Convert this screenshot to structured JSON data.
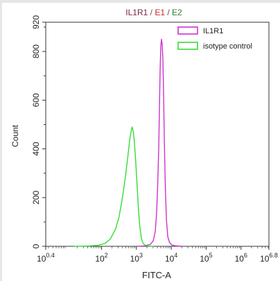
{
  "chart_data": {
    "type": "line",
    "title_parts": [
      {
        "text": "IL1R1",
        "color": "#7a1f3a"
      },
      {
        "text": " / ",
        "color": "#555555"
      },
      {
        "text": "E1",
        "color": "#cc2222"
      },
      {
        "text": " / ",
        "color": "#555555"
      },
      {
        "text": "E2",
        "color": "#2e7d32"
      }
    ],
    "xlabel": "FITC-A",
    "ylabel": "Count",
    "x_scale": "log10",
    "xlim": [
      0.4,
      6.8
    ],
    "ylim": [
      0,
      920
    ],
    "x_ticks": [
      {
        "base": "10",
        "exp": "0.4",
        "value": 0.4
      },
      {
        "base": "10",
        "exp": "2",
        "value": 2
      },
      {
        "base": "10",
        "exp": "3",
        "value": 3
      },
      {
        "base": "10",
        "exp": "4",
        "value": 4
      },
      {
        "base": "10",
        "exp": "5",
        "value": 5
      },
      {
        "base": "10",
        "exp": "6",
        "value": 6
      },
      {
        "base": "10",
        "exp": "6.8",
        "value": 6.8
      }
    ],
    "y_ticks": [
      0,
      200,
      400,
      600,
      800,
      920
    ],
    "legend_position": "top-right",
    "series": [
      {
        "name": "IL1R1",
        "color": "#cc33cc",
        "points": [
          [
            3.05,
            0
          ],
          [
            3.25,
            2
          ],
          [
            3.4,
            8
          ],
          [
            3.48,
            22
          ],
          [
            3.54,
            60
          ],
          [
            3.58,
            140
          ],
          [
            3.61,
            250
          ],
          [
            3.64,
            400
          ],
          [
            3.66,
            560
          ],
          [
            3.68,
            720
          ],
          [
            3.7,
            820
          ],
          [
            3.72,
            850
          ],
          [
            3.74,
            830
          ],
          [
            3.76,
            760
          ],
          [
            3.78,
            620
          ],
          [
            3.8,
            430
          ],
          [
            3.83,
            240
          ],
          [
            3.86,
            110
          ],
          [
            3.9,
            40
          ],
          [
            3.95,
            15
          ],
          [
            4.02,
            5
          ],
          [
            4.12,
            2
          ],
          [
            4.3,
            0
          ]
        ]
      },
      {
        "name": "isotype control",
        "color": "#33dd33",
        "points": [
          [
            1.2,
            0
          ],
          [
            1.6,
            1
          ],
          [
            1.9,
            4
          ],
          [
            2.1,
            12
          ],
          [
            2.25,
            30
          ],
          [
            2.4,
            70
          ],
          [
            2.5,
            120
          ],
          [
            2.6,
            200
          ],
          [
            2.68,
            280
          ],
          [
            2.74,
            350
          ],
          [
            2.78,
            400
          ],
          [
            2.82,
            450
          ],
          [
            2.86,
            480
          ],
          [
            2.88,
            490
          ],
          [
            2.91,
            470
          ],
          [
            2.94,
            430
          ],
          [
            2.98,
            350
          ],
          [
            3.02,
            250
          ],
          [
            3.06,
            150
          ],
          [
            3.1,
            80
          ],
          [
            3.14,
            35
          ],
          [
            3.18,
            15
          ],
          [
            3.24,
            5
          ],
          [
            3.35,
            1
          ],
          [
            3.5,
            0
          ]
        ]
      }
    ]
  }
}
